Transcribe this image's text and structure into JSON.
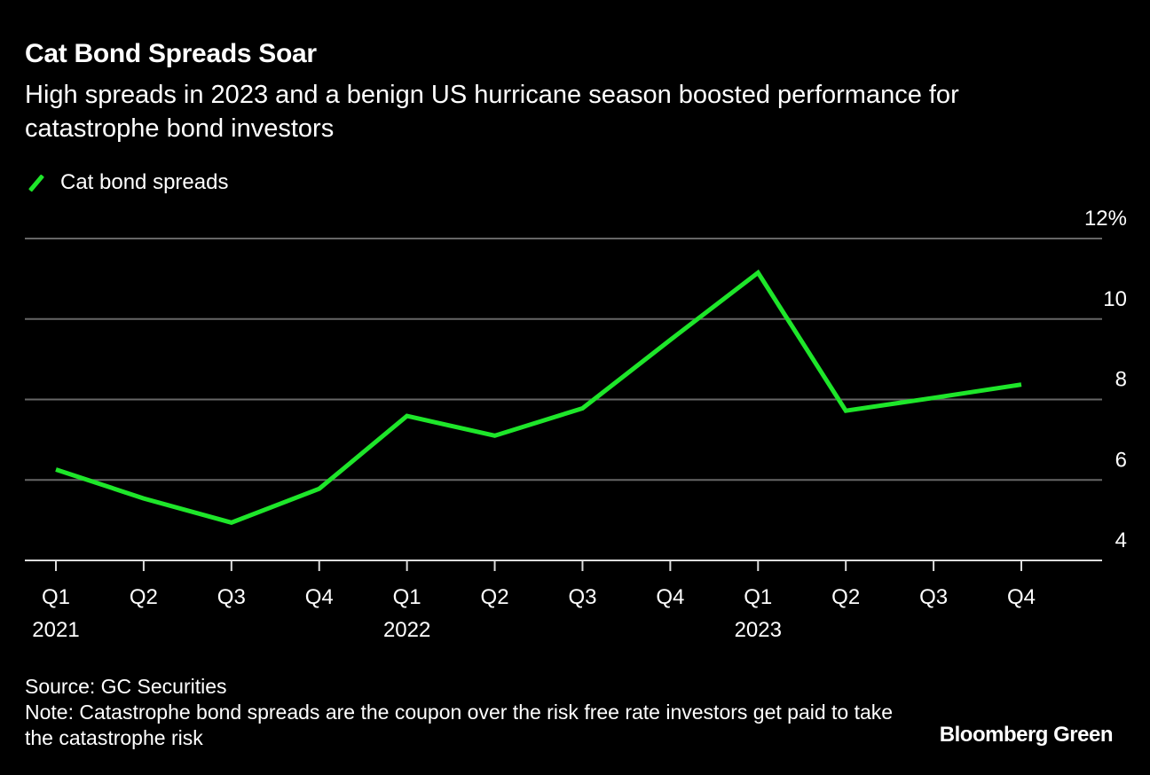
{
  "chart_data": {
    "type": "line",
    "title": "Cat Bond Spreads Soar",
    "subtitle": "High spreads in 2023 and a benign US hurricane season boosted performance for catastrophe bond investors",
    "categories": [
      "Q1 2021",
      "Q2 2021",
      "Q3 2021",
      "Q4 2021",
      "Q1 2022",
      "Q2 2022",
      "Q3 2022",
      "Q4 2022",
      "Q1 2023",
      "Q2 2023",
      "Q3 2023",
      "Q4 2023"
    ],
    "x_tick_labels": [
      {
        "quarter": "Q1",
        "year": "2021"
      },
      {
        "quarter": "Q2",
        "year": ""
      },
      {
        "quarter": "Q3",
        "year": ""
      },
      {
        "quarter": "Q4",
        "year": ""
      },
      {
        "quarter": "Q1",
        "year": "2022"
      },
      {
        "quarter": "Q2",
        "year": ""
      },
      {
        "quarter": "Q3",
        "year": ""
      },
      {
        "quarter": "Q4",
        "year": ""
      },
      {
        "quarter": "Q1",
        "year": "2023"
      },
      {
        "quarter": "Q2",
        "year": ""
      },
      {
        "quarter": "Q3",
        "year": ""
      },
      {
        "quarter": "Q4",
        "year": ""
      }
    ],
    "series": [
      {
        "name": "Cat bond spreads",
        "color": "#1ee62a",
        "values": [
          6.26,
          5.54,
          4.94,
          5.78,
          7.59,
          7.1,
          7.78,
          9.48,
          11.15,
          7.72,
          8.04,
          8.37
        ]
      }
    ],
    "ylim": [
      4,
      12
    ],
    "y_ticks": [
      4,
      6,
      8,
      10,
      12
    ],
    "y_tick_labels": [
      "4",
      "6",
      "8",
      "10",
      "12%"
    ],
    "y_axis_side": "right",
    "grid": true,
    "legend": "top-left",
    "xlabel": "",
    "ylabel": ""
  },
  "footer": {
    "source": "Source: GC Securities",
    "note": "Note: Catastrophe bond spreads are the coupon over the risk free rate investors get paid to take the catastrophe risk",
    "brand": "Bloomberg Green"
  }
}
